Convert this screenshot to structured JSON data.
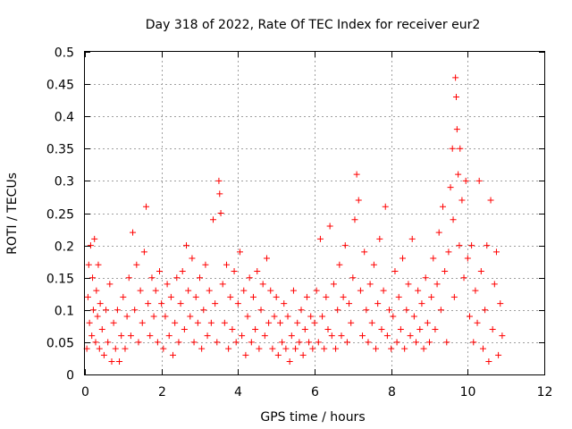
{
  "chart_data": {
    "type": "scatter",
    "title": "Day 318 of 2022, Rate Of TEC Index for receiver eur2",
    "xlabel": "GPS time / hours",
    "ylabel": "ROTI / TECUs",
    "xlim": [
      0,
      12
    ],
    "ylim": [
      0,
      0.5
    ],
    "xticks": [
      0,
      2,
      4,
      6,
      8,
      10,
      12
    ],
    "yticks": [
      0,
      0.05,
      0.1,
      0.15,
      0.2,
      0.25,
      0.3,
      0.35,
      0.4,
      0.45,
      0.5
    ],
    "xtick_labels": [
      "0",
      "2",
      "4",
      "6",
      "8",
      "10",
      "12"
    ],
    "ytick_labels": [
      "0",
      "0.05",
      "0.1",
      "0.15",
      "0.2",
      "0.25",
      "0.3",
      "0.35",
      "0.4",
      "0.45",
      "0.5"
    ],
    "grid": true,
    "marker": "+",
    "color": "#ff0000",
    "series": [
      {
        "values": [
          [
            0.05,
            0.04
          ],
          [
            0.08,
            0.12
          ],
          [
            0.1,
            0.17
          ],
          [
            0.12,
            0.08
          ],
          [
            0.15,
            0.2
          ],
          [
            0.18,
            0.06
          ],
          [
            0.2,
            0.15
          ],
          [
            0.22,
            0.1
          ],
          [
            0.25,
            0.21
          ],
          [
            0.28,
            0.05
          ],
          [
            0.3,
            0.13
          ],
          [
            0.33,
            0.09
          ],
          [
            0.35,
            0.17
          ],
          [
            0.38,
            0.04
          ],
          [
            0.4,
            0.11
          ],
          [
            0.45,
            0.07
          ],
          [
            0.5,
            0.03
          ],
          [
            0.55,
            0.1
          ],
          [
            0.6,
            0.05
          ],
          [
            0.65,
            0.14
          ],
          [
            0.7,
            0.02
          ],
          [
            0.75,
            0.08
          ],
          [
            0.8,
            0.04
          ],
          [
            0.85,
            0.1
          ],
          [
            0.9,
            0.02
          ],
          [
            0.95,
            0.06
          ],
          [
            1.0,
            0.12
          ],
          [
            1.05,
            0.04
          ],
          [
            1.1,
            0.09
          ],
          [
            1.15,
            0.15
          ],
          [
            1.2,
            0.06
          ],
          [
            1.25,
            0.22
          ],
          [
            1.3,
            0.1
          ],
          [
            1.35,
            0.17
          ],
          [
            1.4,
            0.05
          ],
          [
            1.45,
            0.13
          ],
          [
            1.5,
            0.08
          ],
          [
            1.55,
            0.19
          ],
          [
            1.6,
            0.26
          ],
          [
            1.65,
            0.11
          ],
          [
            1.7,
            0.06
          ],
          [
            1.75,
            0.15
          ],
          [
            1.8,
            0.09
          ],
          [
            1.85,
            0.13
          ],
          [
            1.9,
            0.05
          ],
          [
            1.95,
            0.16
          ],
          [
            2.0,
            0.11
          ],
          [
            2.05,
            0.04
          ],
          [
            2.1,
            0.09
          ],
          [
            2.15,
            0.14
          ],
          [
            2.2,
            0.06
          ],
          [
            2.25,
            0.12
          ],
          [
            2.3,
            0.03
          ],
          [
            2.35,
            0.08
          ],
          [
            2.4,
            0.15
          ],
          [
            2.45,
            0.05
          ],
          [
            2.5,
            0.11
          ],
          [
            2.55,
            0.16
          ],
          [
            2.6,
            0.07
          ],
          [
            2.65,
            0.2
          ],
          [
            2.7,
            0.13
          ],
          [
            2.75,
            0.09
          ],
          [
            2.8,
            0.18
          ],
          [
            2.85,
            0.05
          ],
          [
            2.9,
            0.12
          ],
          [
            2.95,
            0.08
          ],
          [
            3.0,
            0.15
          ],
          [
            3.05,
            0.04
          ],
          [
            3.1,
            0.1
          ],
          [
            3.15,
            0.17
          ],
          [
            3.2,
            0.06
          ],
          [
            3.25,
            0.13
          ],
          [
            3.3,
            0.08
          ],
          [
            3.35,
            0.24
          ],
          [
            3.4,
            0.11
          ],
          [
            3.45,
            0.05
          ],
          [
            3.5,
            0.3
          ],
          [
            3.52,
            0.28
          ],
          [
            3.55,
            0.25
          ],
          [
            3.6,
            0.14
          ],
          [
            3.65,
            0.08
          ],
          [
            3.7,
            0.17
          ],
          [
            3.75,
            0.04
          ],
          [
            3.8,
            0.12
          ],
          [
            3.85,
            0.07
          ],
          [
            3.9,
            0.16
          ],
          [
            3.95,
            0.05
          ],
          [
            4.0,
            0.11
          ],
          [
            4.05,
            0.19
          ],
          [
            4.1,
            0.06
          ],
          [
            4.15,
            0.13
          ],
          [
            4.2,
            0.03
          ],
          [
            4.25,
            0.09
          ],
          [
            4.3,
            0.15
          ],
          [
            4.35,
            0.05
          ],
          [
            4.4,
            0.12
          ],
          [
            4.45,
            0.07
          ],
          [
            4.5,
            0.16
          ],
          [
            4.55,
            0.04
          ],
          [
            4.6,
            0.1
          ],
          [
            4.65,
            0.14
          ],
          [
            4.7,
            0.06
          ],
          [
            4.75,
            0.18
          ],
          [
            4.8,
            0.08
          ],
          [
            4.85,
            0.13
          ],
          [
            4.9,
            0.04
          ],
          [
            4.95,
            0.09
          ],
          [
            5.0,
            0.12
          ],
          [
            5.05,
            0.03
          ],
          [
            5.1,
            0.08
          ],
          [
            5.15,
            0.05
          ],
          [
            5.2,
            0.11
          ],
          [
            5.25,
            0.04
          ],
          [
            5.3,
            0.09
          ],
          [
            5.35,
            0.02
          ],
          [
            5.4,
            0.06
          ],
          [
            5.45,
            0.13
          ],
          [
            5.5,
            0.04
          ],
          [
            5.55,
            0.08
          ],
          [
            5.6,
            0.05
          ],
          [
            5.65,
            0.1
          ],
          [
            5.7,
            0.03
          ],
          [
            5.75,
            0.07
          ],
          [
            5.8,
            0.12
          ],
          [
            5.85,
            0.05
          ],
          [
            5.9,
            0.09
          ],
          [
            5.95,
            0.04
          ],
          [
            6.0,
            0.08
          ],
          [
            6.05,
            0.13
          ],
          [
            6.1,
            0.05
          ],
          [
            6.15,
            0.21
          ],
          [
            6.2,
            0.09
          ],
          [
            6.25,
            0.04
          ],
          [
            6.3,
            0.12
          ],
          [
            6.35,
            0.07
          ],
          [
            6.4,
            0.23
          ],
          [
            6.45,
            0.06
          ],
          [
            6.5,
            0.14
          ],
          [
            6.55,
            0.04
          ],
          [
            6.6,
            0.1
          ],
          [
            6.65,
            0.17
          ],
          [
            6.7,
            0.06
          ],
          [
            6.75,
            0.12
          ],
          [
            6.8,
            0.2
          ],
          [
            6.85,
            0.05
          ],
          [
            6.9,
            0.11
          ],
          [
            6.95,
            0.08
          ],
          [
            7.0,
            0.15
          ],
          [
            7.05,
            0.24
          ],
          [
            7.1,
            0.31
          ],
          [
            7.15,
            0.27
          ],
          [
            7.2,
            0.13
          ],
          [
            7.25,
            0.06
          ],
          [
            7.3,
            0.19
          ],
          [
            7.35,
            0.1
          ],
          [
            7.4,
            0.05
          ],
          [
            7.45,
            0.14
          ],
          [
            7.5,
            0.08
          ],
          [
            7.55,
            0.17
          ],
          [
            7.6,
            0.04
          ],
          [
            7.65,
            0.11
          ],
          [
            7.7,
            0.21
          ],
          [
            7.75,
            0.07
          ],
          [
            7.8,
            0.13
          ],
          [
            7.85,
            0.26
          ],
          [
            7.9,
            0.06
          ],
          [
            7.95,
            0.1
          ],
          [
            8.0,
            0.04
          ],
          [
            8.05,
            0.09
          ],
          [
            8.1,
            0.16
          ],
          [
            8.15,
            0.05
          ],
          [
            8.2,
            0.12
          ],
          [
            8.25,
            0.07
          ],
          [
            8.3,
            0.18
          ],
          [
            8.35,
            0.04
          ],
          [
            8.4,
            0.1
          ],
          [
            8.45,
            0.14
          ],
          [
            8.5,
            0.06
          ],
          [
            8.55,
            0.21
          ],
          [
            8.6,
            0.09
          ],
          [
            8.65,
            0.05
          ],
          [
            8.7,
            0.13
          ],
          [
            8.75,
            0.07
          ],
          [
            8.8,
            0.11
          ],
          [
            8.85,
            0.04
          ],
          [
            8.9,
            0.15
          ],
          [
            8.95,
            0.08
          ],
          [
            9.0,
            0.05
          ],
          [
            9.05,
            0.12
          ],
          [
            9.1,
            0.18
          ],
          [
            9.15,
            0.07
          ],
          [
            9.2,
            0.14
          ],
          [
            9.25,
            0.22
          ],
          [
            9.3,
            0.1
          ],
          [
            9.35,
            0.26
          ],
          [
            9.4,
            0.16
          ],
          [
            9.45,
            0.05
          ],
          [
            9.5,
            0.19
          ],
          [
            9.55,
            0.29
          ],
          [
            9.6,
            0.35
          ],
          [
            9.62,
            0.24
          ],
          [
            9.65,
            0.12
          ],
          [
            9.68,
            0.46
          ],
          [
            9.7,
            0.43
          ],
          [
            9.72,
            0.38
          ],
          [
            9.75,
            0.31
          ],
          [
            9.78,
            0.2
          ],
          [
            9.8,
            0.35
          ],
          [
            9.85,
            0.27
          ],
          [
            9.9,
            0.15
          ],
          [
            9.95,
            0.3
          ],
          [
            10.0,
            0.18
          ],
          [
            10.05,
            0.09
          ],
          [
            10.1,
            0.2
          ],
          [
            10.15,
            0.05
          ],
          [
            10.2,
            0.13
          ],
          [
            10.25,
            0.08
          ],
          [
            10.3,
            0.3
          ],
          [
            10.35,
            0.16
          ],
          [
            10.4,
            0.04
          ],
          [
            10.45,
            0.1
          ],
          [
            10.5,
            0.2
          ],
          [
            10.55,
            0.02
          ],
          [
            10.6,
            0.27
          ],
          [
            10.65,
            0.07
          ],
          [
            10.7,
            0.14
          ],
          [
            10.75,
            0.19
          ],
          [
            10.8,
            0.03
          ],
          [
            10.85,
            0.11
          ],
          [
            10.9,
            0.06
          ]
        ]
      }
    ]
  }
}
